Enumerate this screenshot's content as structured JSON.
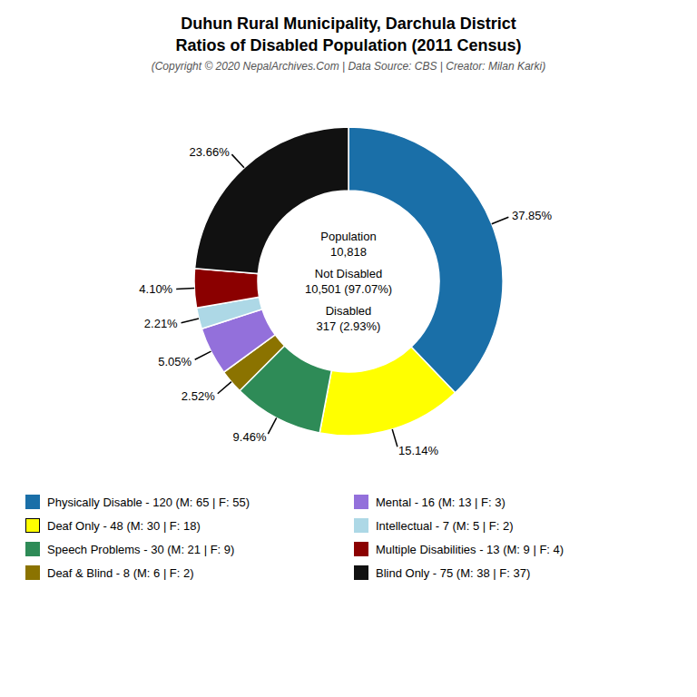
{
  "chart_data": {
    "type": "pie",
    "title": [
      "Duhun Rural Municipality, Darchula District",
      "Ratios of Disabled Population (2011 Census)"
    ],
    "subtitle": "(Copyright © 2020 NepalArchives.Com | Data Source: CBS | Creator: Milan Karki)",
    "categories": [
      "Physically Disable - 120 (M: 65 | F: 55)",
      "Deaf Only - 48 (M: 30 | F: 18)",
      "Speech Problems - 30 (M: 21 | F: 9)",
      "Deaf & Blind - 8 (M: 6 | F: 2)",
      "Mental - 16 (M: 13 | F: 3)",
      "Intellectual - 7 (M: 5 | F: 2)",
      "Multiple Disabilities - 13 (M: 9 | F: 4)",
      "Blind Only - 75 (M: 38 | F: 37)"
    ],
    "values": [
      37.85,
      15.14,
      9.46,
      2.52,
      5.05,
      2.21,
      4.1,
      23.66
    ],
    "value_labels": [
      "37.85%",
      "15.14%",
      "9.46%",
      "2.52%",
      "5.05%",
      "2.21%",
      "4.10%",
      "23.66%"
    ],
    "colors": [
      "#1a6fa8",
      "#ffff00",
      "#2e8b57",
      "#8b7300",
      "#9370db",
      "#add8e6",
      "#8b0000",
      "#111111"
    ],
    "data_labels": true,
    "legend": "bottom",
    "annotations": [
      "Population",
      "10,818",
      "Not Disabled",
      "10,501 (97.07%)",
      "Disabled",
      "317 (2.93%)"
    ]
  }
}
